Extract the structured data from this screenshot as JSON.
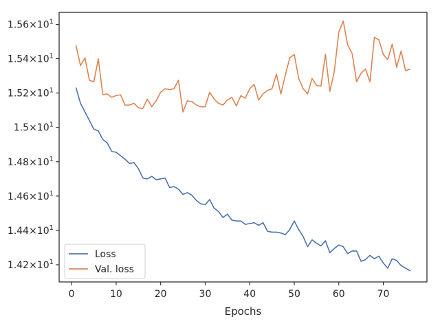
{
  "chart_data": {
    "type": "line",
    "title": "",
    "xlabel": "Epochs",
    "ylabel": "",
    "xlim": [
      -2.8,
      79.8
    ],
    "ylim": [
      14.1,
      15.67
    ],
    "x_ticks": [
      0,
      10,
      20,
      30,
      40,
      50,
      60,
      70
    ],
    "x_tick_labels": [
      "0",
      "10",
      "20",
      "30",
      "40",
      "50",
      "60",
      "70"
    ],
    "y_ticks": [
      14.2,
      14.4,
      14.6,
      14.8,
      15.0,
      15.2,
      15.4,
      15.6
    ],
    "y_tick_labels": [
      "1.42×10¹",
      "1.44×10¹",
      "1.46×10¹",
      "1.48×10¹",
      "1.5×10¹",
      "1.52×10¹",
      "1.54×10¹",
      "1.56×10¹"
    ],
    "grid": false,
    "legend_position": "lower-left",
    "x": [
      1,
      2,
      3,
      4,
      5,
      6,
      7,
      8,
      9,
      10,
      11,
      12,
      13,
      14,
      15,
      16,
      17,
      18,
      19,
      20,
      21,
      22,
      23,
      24,
      25,
      26,
      27,
      28,
      29,
      30,
      31,
      32,
      33,
      34,
      35,
      36,
      37,
      38,
      39,
      40,
      41,
      42,
      43,
      44,
      45,
      46,
      47,
      48,
      49,
      50,
      51,
      52,
      53,
      54,
      55,
      56,
      57,
      58,
      59,
      60,
      61,
      62,
      63,
      64,
      65,
      66,
      67,
      68,
      69,
      70,
      71,
      72,
      73,
      74,
      75,
      76
    ],
    "series": [
      {
        "name": "Loss",
        "color": "#4c72b0",
        "values": [
          15.23,
          15.14,
          15.09,
          15.04,
          14.99,
          14.98,
          14.93,
          14.91,
          14.86,
          14.855,
          14.835,
          14.815,
          14.79,
          14.795,
          14.76,
          14.705,
          14.7,
          14.715,
          14.695,
          14.7,
          14.705,
          14.65,
          14.655,
          14.64,
          14.61,
          14.62,
          14.605,
          14.575,
          14.555,
          14.55,
          14.58,
          14.53,
          14.51,
          14.475,
          14.495,
          14.46,
          14.455,
          14.455,
          14.435,
          14.44,
          14.445,
          14.43,
          14.445,
          14.395,
          14.39,
          14.39,
          14.385,
          14.375,
          14.405,
          14.455,
          14.405,
          14.365,
          14.305,
          14.345,
          14.325,
          14.31,
          14.34,
          14.27,
          14.295,
          14.315,
          14.305,
          14.265,
          14.28,
          14.28,
          14.22,
          14.23,
          14.255,
          14.235,
          14.25,
          14.21,
          14.18,
          14.235,
          14.225,
          14.195,
          14.18,
          14.165
        ]
      },
      {
        "name": "Val. loss",
        "color": "#dd8452",
        "values": [
          15.475,
          15.36,
          15.405,
          15.275,
          15.265,
          15.4,
          15.19,
          15.195,
          15.175,
          15.185,
          15.19,
          15.13,
          15.13,
          15.14,
          15.115,
          15.11,
          15.165,
          15.12,
          15.155,
          15.205,
          15.225,
          15.22,
          15.225,
          15.275,
          15.09,
          15.155,
          15.15,
          15.13,
          15.12,
          15.12,
          15.205,
          15.165,
          15.14,
          15.13,
          15.16,
          15.175,
          15.125,
          15.185,
          15.17,
          15.225,
          15.25,
          15.16,
          15.195,
          15.215,
          15.225,
          15.31,
          15.195,
          15.305,
          15.405,
          15.425,
          15.285,
          15.225,
          15.195,
          15.285,
          15.245,
          15.24,
          15.425,
          15.21,
          15.325,
          15.555,
          15.62,
          15.48,
          15.43,
          15.265,
          15.315,
          15.34,
          15.265,
          15.525,
          15.51,
          15.425,
          15.395,
          15.485,
          15.35,
          15.445,
          15.33,
          15.34
        ]
      }
    ]
  }
}
